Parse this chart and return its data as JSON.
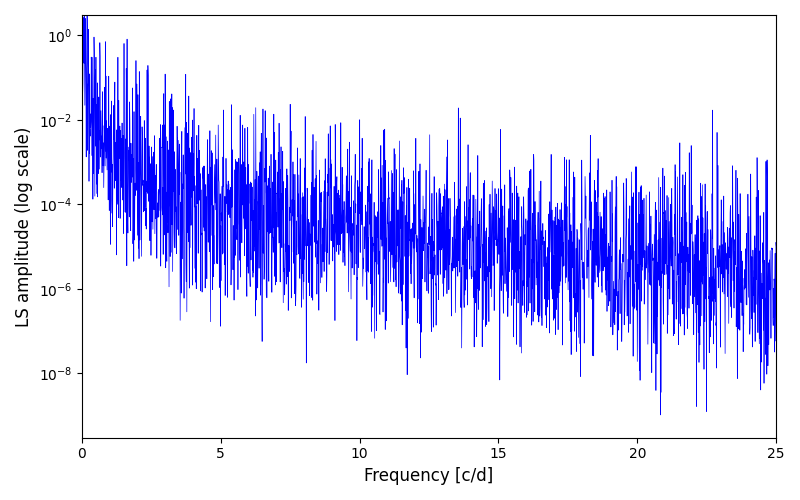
{
  "title": "",
  "xlabel": "Frequency [c/d]",
  "ylabel": "LS amplitude (log scale)",
  "line_color": "#0000ff",
  "line_width": 0.5,
  "xlim": [
    0,
    25
  ],
  "ylim_log": [
    3e-10,
    3.0
  ],
  "freq_min": 0.0,
  "freq_max": 25.0,
  "n_points": 2500,
  "background_color": "#ffffff",
  "figsize": [
    8.0,
    5.0
  ],
  "dpi": 100,
  "seed": 137
}
